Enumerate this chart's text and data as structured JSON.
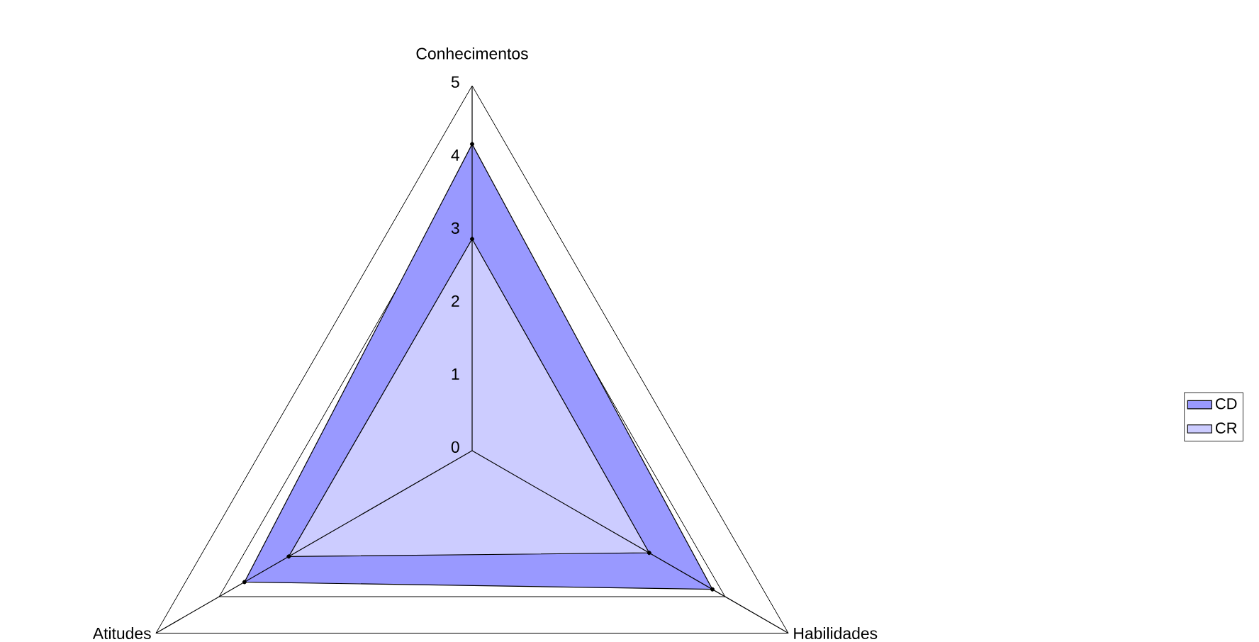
{
  "chart_data": {
    "type": "radar",
    "categories": [
      "Conhecimentos",
      "Habilidades",
      "Atitudes"
    ],
    "series": [
      {
        "name": "CD",
        "color": "#9999ff",
        "values": [
          4.2,
          3.8,
          3.6
        ]
      },
      {
        "name": "CR",
        "color": "#ccccff",
        "values": [
          2.9,
          2.8,
          2.9
        ]
      }
    ],
    "ylim": [
      0,
      5
    ],
    "yticks": [
      0,
      1,
      2,
      3,
      4,
      5
    ],
    "grid": true,
    "legend": "right",
    "marker": "circle"
  }
}
